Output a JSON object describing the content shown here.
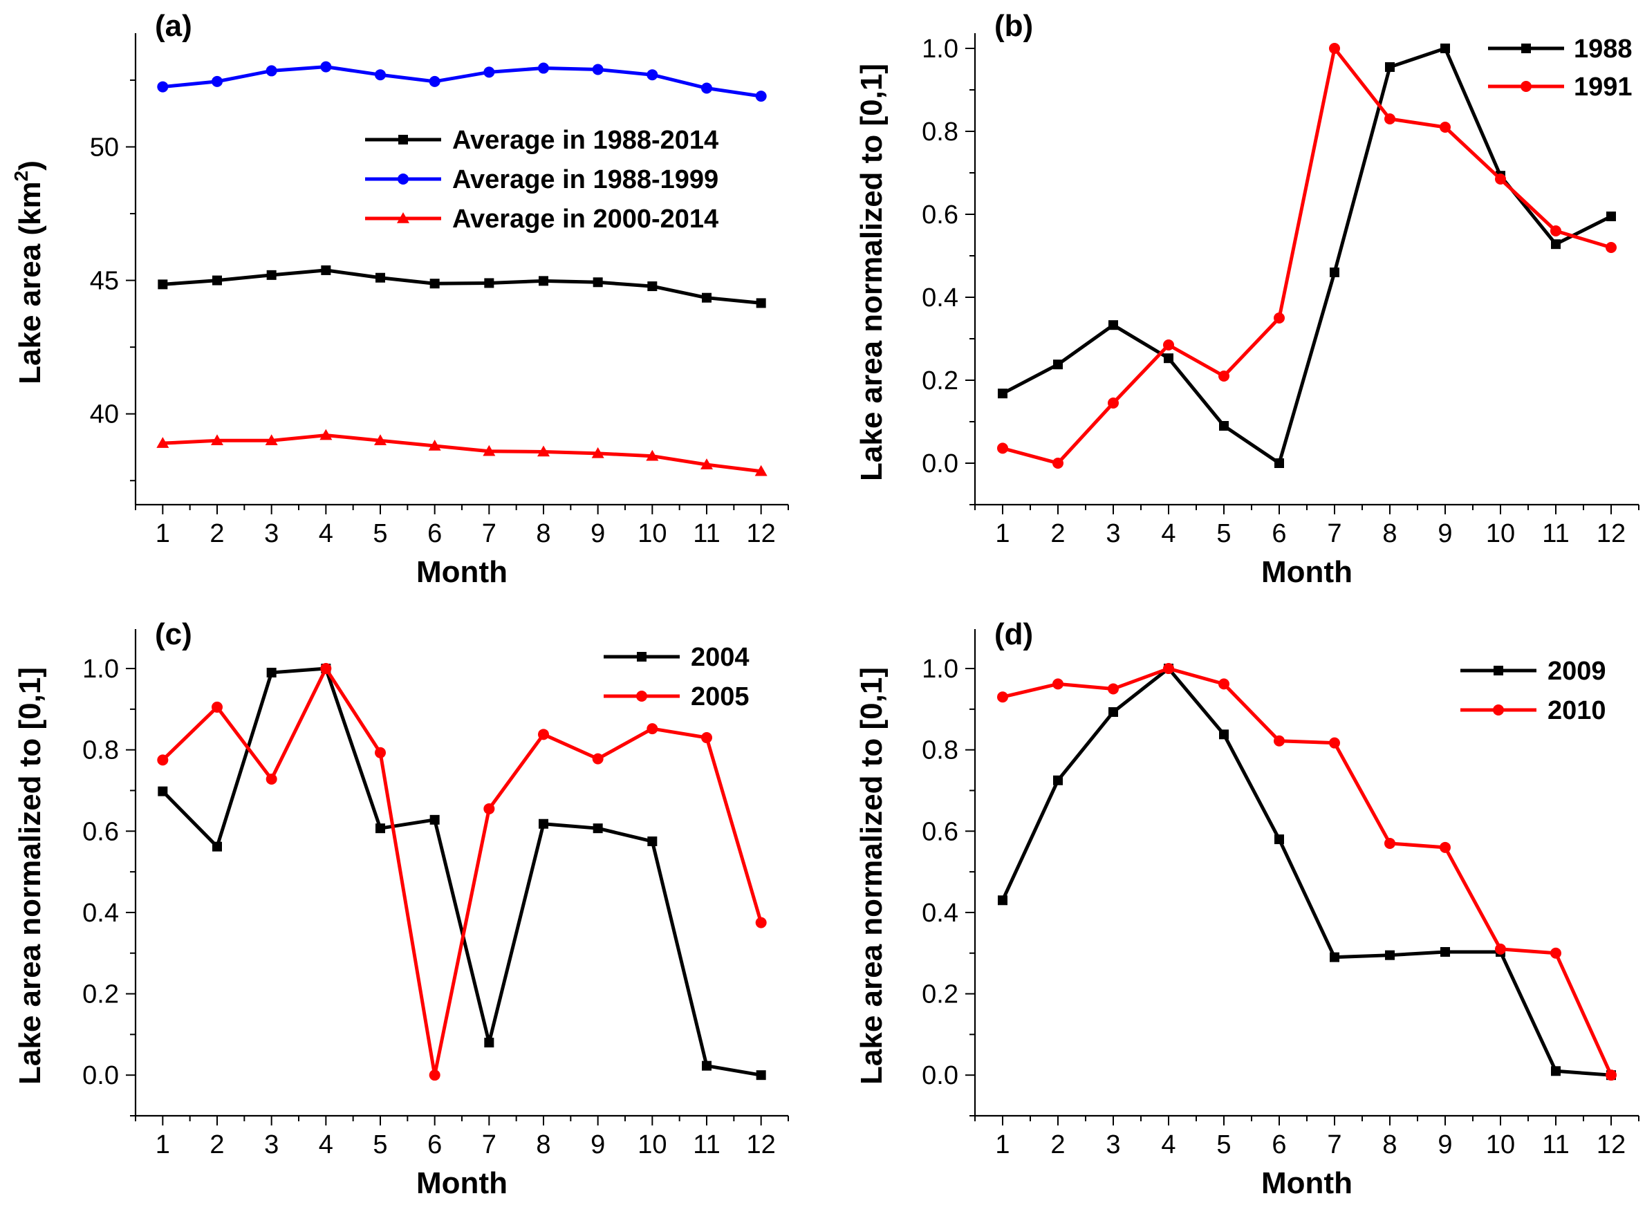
{
  "chart_data": [
    {
      "id": "a",
      "type": "line",
      "panel_label": "(a)",
      "xlabel": "Month",
      "ylabel": "Lake area (km",
      "ylabel_sup": "2",
      "ylabel_end": ")",
      "x": [
        1,
        2,
        3,
        4,
        5,
        6,
        7,
        8,
        9,
        10,
        11,
        12
      ],
      "xticks": [
        "1",
        "2",
        "3",
        "4",
        "5",
        "6",
        "7",
        "8",
        "9",
        "10",
        "11",
        "12"
      ],
      "xlim": [
        0.5,
        12.5
      ],
      "ylim": [
        36.6,
        54.0
      ],
      "yticks": [
        40,
        45,
        50
      ],
      "yticklabels": [
        "40",
        "45",
        "50"
      ],
      "minor_yticks": [
        37.5,
        42.5,
        47.5,
        52.5
      ],
      "legend_position": "center-right",
      "series": [
        {
          "name": "Average in 1988-2014",
          "color": "#000000",
          "marker": "square",
          "values": [
            44.85,
            45.0,
            45.2,
            45.38,
            45.1,
            44.88,
            44.9,
            44.98,
            44.93,
            44.78,
            44.35,
            44.15
          ]
        },
        {
          "name": "Average in 1988-1999",
          "color": "#0000ff",
          "marker": "circle",
          "values": [
            52.25,
            52.45,
            52.85,
            53.0,
            52.7,
            52.45,
            52.8,
            52.95,
            52.9,
            52.7,
            52.2,
            51.9
          ]
        },
        {
          "name": "Average in 2000-2014",
          "color": "#ff0000",
          "marker": "triangle",
          "values": [
            38.9,
            39.0,
            39.0,
            39.2,
            39.0,
            38.8,
            38.6,
            38.58,
            38.52,
            38.42,
            38.1,
            37.85
          ]
        }
      ]
    },
    {
      "id": "b",
      "type": "line",
      "panel_label": "(b)",
      "xlabel": "Month",
      "ylabel": "Lake area normalized to [0,1]",
      "x": [
        1,
        2,
        3,
        4,
        5,
        6,
        7,
        8,
        9,
        10,
        11,
        12
      ],
      "xticks": [
        "1",
        "2",
        "3",
        "4",
        "5",
        "6",
        "7",
        "8",
        "9",
        "10",
        "11",
        "12"
      ],
      "xlim": [
        0.5,
        12.5
      ],
      "ylim": [
        -0.1,
        1.02
      ],
      "yticks": [
        0.0,
        0.2,
        0.4,
        0.6,
        0.8,
        1.0
      ],
      "yticklabels": [
        "0.0",
        "0.2",
        "0.4",
        "0.6",
        "0.8",
        "1.0"
      ],
      "minor_yticks": [
        -0.1,
        0.1,
        0.3,
        0.5,
        0.7,
        0.9
      ],
      "legend_position": "top-right",
      "series": [
        {
          "name": "1988",
          "color": "#000000",
          "marker": "square",
          "values": [
            0.168,
            0.238,
            0.333,
            0.253,
            0.09,
            0.0,
            0.46,
            0.955,
            1.0,
            0.693,
            0.528,
            0.595
          ]
        },
        {
          "name": "1991",
          "color": "#ff0000",
          "marker": "circle",
          "values": [
            0.036,
            0.0,
            0.145,
            0.285,
            0.21,
            0.35,
            1.0,
            0.83,
            0.81,
            0.685,
            0.56,
            0.52
          ]
        }
      ]
    },
    {
      "id": "c",
      "type": "line",
      "panel_label": "(c)",
      "xlabel": "Month",
      "ylabel": "Lake area normalized to [0,1]",
      "x": [
        1,
        2,
        3,
        4,
        5,
        6,
        7,
        8,
        9,
        10,
        11,
        12
      ],
      "xticks": [
        "1",
        "2",
        "3",
        "4",
        "5",
        "6",
        "7",
        "8",
        "9",
        "10",
        "11",
        "12"
      ],
      "xlim": [
        0.5,
        12.5
      ],
      "ylim": [
        -0.1,
        1.08
      ],
      "yticks": [
        0.0,
        0.2,
        0.4,
        0.6,
        0.8,
        1.0
      ],
      "yticklabels": [
        "0.0",
        "0.2",
        "0.4",
        "0.6",
        "0.8",
        "1.0"
      ],
      "minor_yticks": [
        -0.1,
        0.1,
        0.3,
        0.5,
        0.7,
        0.9
      ],
      "legend_position": "top-right",
      "series": [
        {
          "name": "2004",
          "color": "#000000",
          "marker": "square",
          "values": [
            0.698,
            0.562,
            0.99,
            1.0,
            0.607,
            0.628,
            0.08,
            0.618,
            0.607,
            0.575,
            0.023,
            0.0
          ]
        },
        {
          "name": "2005",
          "color": "#ff0000",
          "marker": "circle",
          "values": [
            0.775,
            0.905,
            0.728,
            1.0,
            0.793,
            0.0,
            0.655,
            0.838,
            0.778,
            0.852,
            0.83,
            0.375
          ]
        }
      ]
    },
    {
      "id": "d",
      "type": "line",
      "panel_label": "(d)",
      "xlabel": "Month",
      "ylabel": "Lake area normalized to [0,1]",
      "x": [
        1,
        2,
        3,
        4,
        5,
        6,
        7,
        8,
        9,
        10,
        11,
        12
      ],
      "xticks": [
        "1",
        "2",
        "3",
        "4",
        "5",
        "6",
        "7",
        "8",
        "9",
        "10",
        "11",
        "12"
      ],
      "xlim": [
        0.5,
        12.5
      ],
      "ylim": [
        -0.1,
        1.08
      ],
      "yticks": [
        0.0,
        0.2,
        0.4,
        0.6,
        0.8,
        1.0
      ],
      "yticklabels": [
        "0.0",
        "0.2",
        "0.4",
        "0.6",
        "0.8",
        "1.0"
      ],
      "minor_yticks": [
        -0.1,
        0.1,
        0.3,
        0.5,
        0.7,
        0.9
      ],
      "legend_position": "top-right",
      "series": [
        {
          "name": "2009",
          "color": "#000000",
          "marker": "square",
          "values": [
            0.43,
            0.725,
            0.893,
            1.0,
            0.838,
            0.58,
            0.29,
            0.295,
            0.303,
            0.303,
            0.01,
            0.0
          ]
        },
        {
          "name": "2010",
          "color": "#ff0000",
          "marker": "circle",
          "values": [
            0.93,
            0.962,
            0.95,
            1.0,
            0.962,
            0.822,
            0.817,
            0.57,
            0.56,
            0.31,
            0.3,
            0.0
          ]
        }
      ]
    }
  ]
}
